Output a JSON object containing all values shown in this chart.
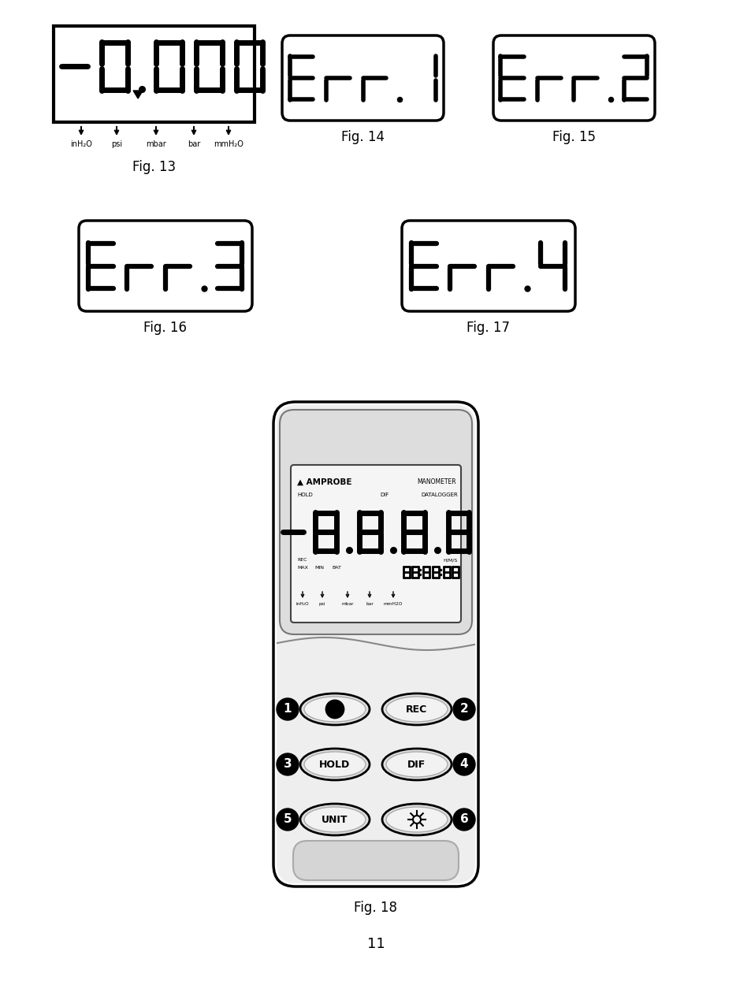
{
  "bg_color": "#ffffff",
  "fig13_label": "Fig. 13",
  "fig14_label": "Fig. 14",
  "fig15_label": "Fig. 15",
  "fig16_label": "Fig. 16",
  "fig17_label": "Fig. 17",
  "fig18_label": "Fig. 18",
  "page_number": "11",
  "units_display": [
    "inH₂O",
    "psi",
    "mbar",
    "bar",
    "mmH2O"
  ],
  "units_fig13": [
    "inH₂O",
    "psi",
    "mbar",
    "bar",
    "mmH₂O"
  ]
}
